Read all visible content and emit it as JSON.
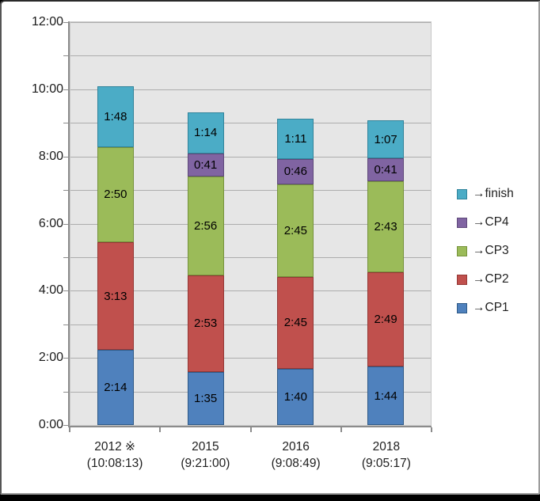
{
  "chart_data": {
    "type": "bar",
    "stacked": true,
    "title": "",
    "categories": [
      {
        "label": "2012 ※",
        "sublabel": "(10:08:13)"
      },
      {
        "label": "2015",
        "sublabel": "(9:21:00)"
      },
      {
        "label": "2016",
        "sublabel": "(9:08:49)"
      },
      {
        "label": "2018",
        "sublabel": "(9:05:17)"
      }
    ],
    "series": [
      {
        "name": "→CP1",
        "color": "#4f81bd",
        "border_color": "#2f5a87",
        "values": [
          "2:14",
          "1:35",
          "1:40",
          "1:44"
        ]
      },
      {
        "name": "→CP2",
        "color": "#c0504d",
        "border_color": "#953735",
        "values": [
          "3:13",
          "2:53",
          "2:45",
          "2:49"
        ]
      },
      {
        "name": "→CP3",
        "color": "#9bbb59",
        "border_color": "#76933c",
        "values": [
          "2:50",
          "2:56",
          "2:45",
          "2:43"
        ]
      },
      {
        "name": "→CP4",
        "color": "#8064a2",
        "border_color": "#5f497a",
        "values": [
          null,
          "0:41",
          "0:46",
          "0:41"
        ]
      },
      {
        "name": "→finish",
        "color": "#4bacc6",
        "border_color": "#31849b",
        "values": [
          "1:48",
          "1:14",
          "1:11",
          "1:07"
        ]
      }
    ],
    "y_axis": {
      "tick_labels": [
        "0:00",
        "2:00",
        "4:00",
        "6:00",
        "8:00",
        "10:00",
        "12:00"
      ],
      "min_hours": 0,
      "max_hours": 12,
      "label_every_hours": 2,
      "gridline_every_hours": 1
    },
    "legend": {
      "position": "right",
      "entries": [
        "→finish",
        "→CP4",
        "→CP3",
        "→CP2",
        "→CP1"
      ]
    },
    "value_label_format": "h:mm",
    "plot_background_color": "#e6e6e6",
    "gridline_color": "#adadad"
  }
}
